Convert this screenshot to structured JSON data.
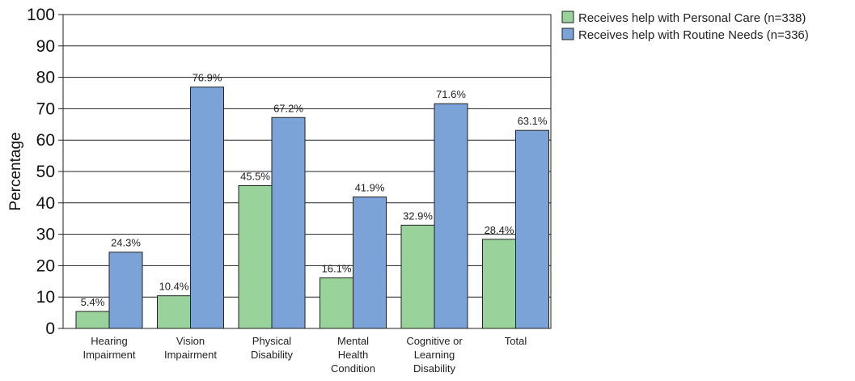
{
  "chart_data": {
    "type": "bar",
    "categories": [
      [
        "Hearing",
        "Impairment"
      ],
      [
        "Vision",
        "Impairment"
      ],
      [
        "Physical",
        "Disability"
      ],
      [
        "Mental",
        "Health",
        "Condition"
      ],
      [
        "Cognitive or",
        "Learning",
        "Disability"
      ],
      [
        "Total"
      ]
    ],
    "series": [
      {
        "name": "Receives help with Personal Care (n=338)",
        "color": "#99d29b",
        "values": [
          5.4,
          10.4,
          45.5,
          16.1,
          32.9,
          28.4
        ],
        "labels": [
          "5.4%",
          "10.4%",
          "45.5%",
          "16.1%",
          "32.9%",
          "28.4%"
        ]
      },
      {
        "name": "Receives help with Routine Needs (n=336)",
        "color": "#7ca3d8",
        "values": [
          24.3,
          76.9,
          67.2,
          41.9,
          71.6,
          63.1
        ],
        "labels": [
          "24.3%",
          "76.9%",
          "67.2%",
          "41.9%",
          "71.6%",
          "63.1%"
        ]
      }
    ],
    "ylabel": "Percentage",
    "xlabel": "",
    "ylim": [
      0,
      100
    ],
    "yticks": [
      "0",
      "10",
      "20",
      "30",
      "40",
      "50",
      "60",
      "70",
      "80",
      "90",
      "100"
    ],
    "grid": true,
    "legend_position": "top-right"
  }
}
